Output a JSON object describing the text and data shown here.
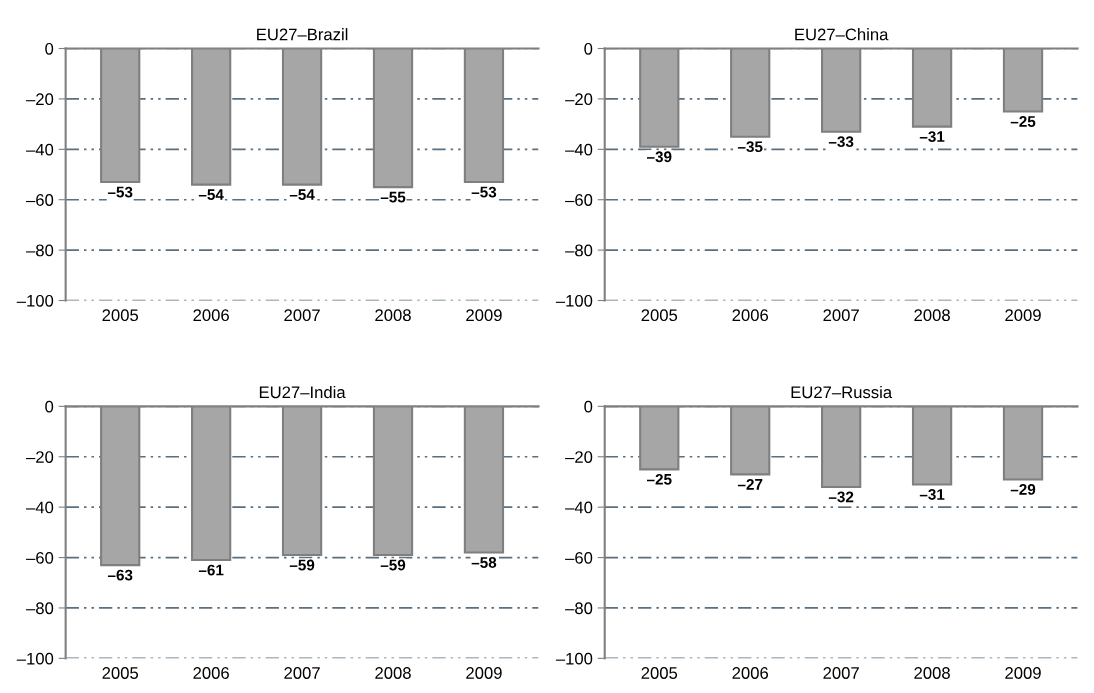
{
  "chart_data": [
    {
      "type": "bar",
      "title": "EU27–Brazil",
      "categories": [
        "2005",
        "2006",
        "2007",
        "2008",
        "2009"
      ],
      "values": [
        -53,
        -54,
        -54,
        -55,
        -53
      ],
      "value_labels": [
        "–53",
        "–54",
        "–54",
        "–55",
        "–53"
      ],
      "color": "#a6a6a6",
      "ylim": [
        -100,
        0
      ],
      "yticks": [
        {
          "value": 0,
          "label": "0"
        },
        {
          "value": -20,
          "label": "–20"
        },
        {
          "value": -40,
          "label": "–40"
        },
        {
          "value": -60,
          "label": "–60"
        },
        {
          "value": -80,
          "label": "–80"
        },
        {
          "value": -100,
          "label": "–100"
        }
      ],
      "grid": "y",
      "legend": false
    },
    {
      "type": "bar",
      "title": "EU27–China",
      "categories": [
        "2005",
        "2006",
        "2007",
        "2008",
        "2009"
      ],
      "values": [
        -39,
        -35,
        -33,
        -31,
        -25
      ],
      "value_labels": [
        "–39",
        "–35",
        "–33",
        "–31",
        "–25"
      ],
      "color": "#a6a6a6",
      "ylim": [
        -100,
        0
      ],
      "yticks": [
        {
          "value": 0,
          "label": "0"
        },
        {
          "value": -20,
          "label": "–20"
        },
        {
          "value": -40,
          "label": "–40"
        },
        {
          "value": -60,
          "label": "–60"
        },
        {
          "value": -80,
          "label": "–80"
        },
        {
          "value": -100,
          "label": "–100"
        }
      ],
      "grid": "y",
      "legend": false
    },
    {
      "type": "bar",
      "title": "EU27–India",
      "categories": [
        "2005",
        "2006",
        "2007",
        "2008",
        "2009"
      ],
      "values": [
        -63,
        -61,
        -59,
        -59,
        -58
      ],
      "value_labels": [
        "–63",
        "–61",
        "–59",
        "–59",
        "–58"
      ],
      "color": "#a6a6a6",
      "ylim": [
        -100,
        0
      ],
      "yticks": [
        {
          "value": 0,
          "label": "0"
        },
        {
          "value": -20,
          "label": "–20"
        },
        {
          "value": -40,
          "label": "–40"
        },
        {
          "value": -60,
          "label": "–60"
        },
        {
          "value": -80,
          "label": "–80"
        },
        {
          "value": -100,
          "label": "–100"
        }
      ],
      "grid": "y",
      "legend": false
    },
    {
      "type": "bar",
      "title": "EU27–Russia",
      "categories": [
        "2005",
        "2006",
        "2007",
        "2008",
        "2009"
      ],
      "values": [
        -25,
        -27,
        -32,
        -31,
        -29
      ],
      "value_labels": [
        "–25",
        "–27",
        "–32",
        "–31",
        "–29"
      ],
      "color": "#a6a6a6",
      "ylim": [
        -100,
        0
      ],
      "yticks": [
        {
          "value": 0,
          "label": "0"
        },
        {
          "value": -20,
          "label": "–20"
        },
        {
          "value": -40,
          "label": "–40"
        },
        {
          "value": -60,
          "label": "–60"
        },
        {
          "value": -80,
          "label": "–80"
        },
        {
          "value": -100,
          "label": "–100"
        }
      ],
      "grid": "y",
      "legend": false
    }
  ]
}
